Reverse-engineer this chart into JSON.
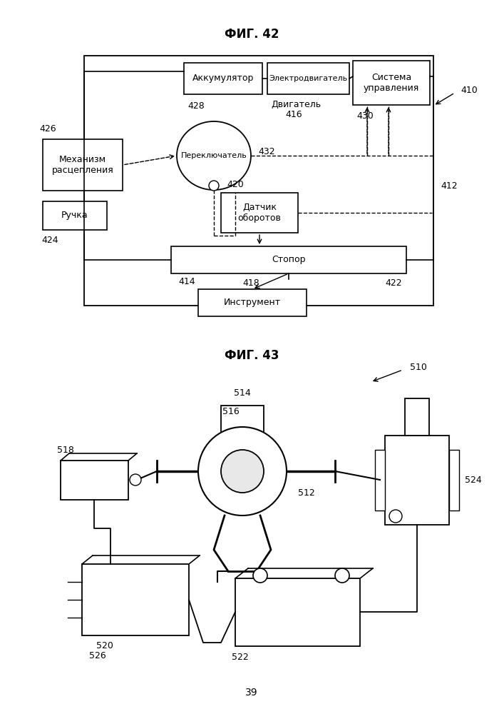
{
  "fig_title1": "ФИГ. 42",
  "fig_title2": "ФИГ. 43",
  "page_number": "39",
  "bg_color": "#ffffff"
}
